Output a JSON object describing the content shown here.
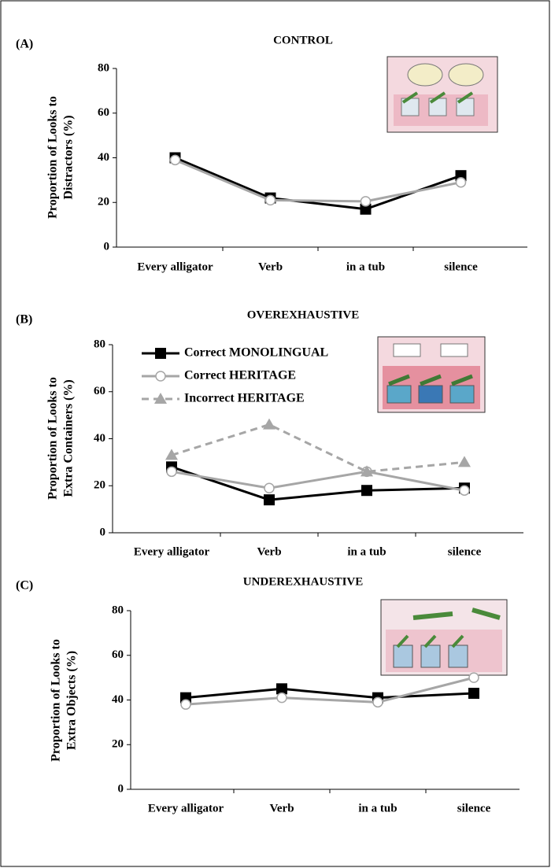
{
  "chart_data": [
    {
      "type": "line",
      "panel": "(A)",
      "title": "CONTROL",
      "ylabel": [
        "Proportion of Looks to",
        "Distractors (%)"
      ],
      "categories": [
        "Every alligator",
        "Verb",
        "in a tub",
        "silence"
      ],
      "series": [
        {
          "color": "#000000",
          "marker": "square",
          "dash": false,
          "values": [
            40,
            22,
            17,
            32
          ]
        },
        {
          "color": "#a6a6a6",
          "marker": "circle",
          "dash": false,
          "values": [
            39,
            21,
            20.5,
            29
          ]
        }
      ],
      "ylim": [
        0,
        80
      ],
      "yticks": [
        0,
        20,
        40,
        60,
        80
      ]
    },
    {
      "type": "line",
      "panel": "(B)",
      "title": "OVEREXHAUSTIVE",
      "ylabel": [
        "Proportion of Looks to",
        "Extra Containers (%)"
      ],
      "categories": [
        "Every alligator",
        "Verb",
        "in a tub",
        "silence"
      ],
      "series": [
        {
          "name": "Correct MONOLINGUAL",
          "color": "#000000",
          "marker": "square",
          "dash": false,
          "values": [
            28,
            14,
            18,
            19
          ]
        },
        {
          "name": "Correct HERITAGE",
          "color": "#a6a6a6",
          "marker": "circle",
          "dash": false,
          "values": [
            26,
            19,
            26,
            18
          ]
        },
        {
          "name": "Incorrect HERITAGE",
          "color": "#a6a6a6",
          "marker": "triangle",
          "dash": true,
          "values": [
            33,
            46,
            26,
            30
          ]
        }
      ],
      "legend": "upper left",
      "ylim": [
        0,
        80
      ],
      "yticks": [
        0,
        20,
        40,
        60,
        80
      ]
    },
    {
      "type": "line",
      "panel": "(C)",
      "title": "UNDEREXHAUSTIVE",
      "ylabel": [
        "Proportion of Looks to",
        "Extra Objects (%)"
      ],
      "categories": [
        "Every alligator",
        "Verb",
        "in a tub",
        "silence"
      ],
      "series": [
        {
          "color": "#000000",
          "marker": "square",
          "dash": false,
          "values": [
            41,
            45,
            41,
            43
          ]
        },
        {
          "color": "#a6a6a6",
          "marker": "circle",
          "dash": false,
          "values": [
            38,
            41,
            39,
            50
          ]
        }
      ],
      "ylim": [
        0,
        80
      ],
      "yticks": [
        0,
        20,
        40,
        60,
        80
      ]
    }
  ]
}
